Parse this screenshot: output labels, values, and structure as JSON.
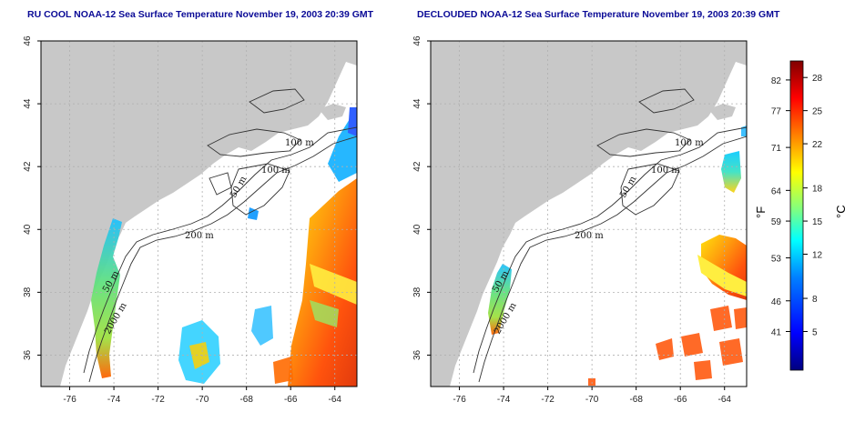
{
  "left_panel": {
    "title": "RU COOL NOAA-12 Sea Surface Temperature November 19, 2003 20:39 GMT"
  },
  "right_panel": {
    "title": "DECLOUDED NOAA-12 Sea Surface Temperature November 19, 2003 20:39 GMT"
  },
  "axes": {
    "lon_ticks": [
      "-76",
      "-74",
      "-72",
      "-70",
      "-68",
      "-66",
      "-64"
    ],
    "lat_ticks": [
      "36",
      "38",
      "40",
      "42",
      "44",
      "46"
    ],
    "lon_range": [
      -77.3,
      -63.0
    ],
    "lat_range": [
      35.0,
      46.0
    ]
  },
  "contour_labels": [
    "100 m",
    "100 m",
    "50 m",
    "200 m",
    "50 m",
    "2000 m"
  ],
  "colorbar": {
    "unit_f": "°F",
    "unit_c": "°C",
    "f_ticks": [
      "82",
      "77",
      "71",
      "64",
      "59",
      "53",
      "46",
      "41"
    ],
    "c_ticks": [
      "28",
      "25",
      "22",
      "18",
      "15",
      "12",
      "8",
      "5"
    ],
    "c_range": [
      1.5,
      29.5
    ],
    "colors": [
      "#00007f",
      "#0000ff",
      "#0080ff",
      "#00ffff",
      "#80ff80",
      "#ffff00",
      "#ff8000",
      "#ff0000",
      "#800000"
    ]
  }
}
